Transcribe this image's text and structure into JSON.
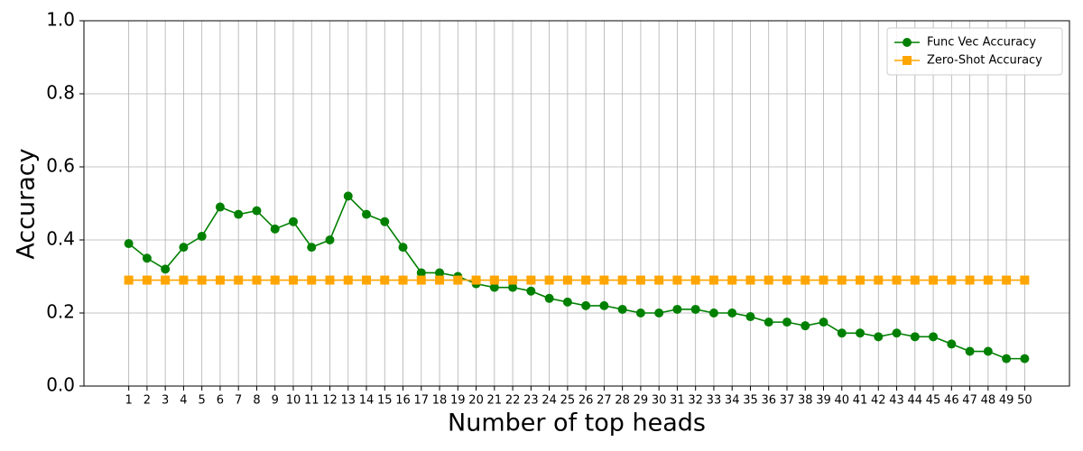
{
  "chart_data": {
    "type": "line",
    "x_label": "Number of top heads",
    "y_label": "Accuracy",
    "x": [
      1,
      2,
      3,
      4,
      5,
      6,
      7,
      8,
      9,
      10,
      11,
      12,
      13,
      14,
      15,
      16,
      17,
      18,
      19,
      20,
      21,
      22,
      23,
      24,
      25,
      26,
      27,
      28,
      29,
      30,
      31,
      32,
      33,
      34,
      35,
      36,
      37,
      38,
      39,
      40,
      41,
      42,
      43,
      44,
      45,
      46,
      47,
      48,
      49,
      50
    ],
    "series": [
      {
        "name": "Func Vec Accuracy",
        "color": "#008000",
        "marker": "circle",
        "values": [
          0.39,
          0.35,
          0.32,
          0.38,
          0.41,
          0.49,
          0.47,
          0.48,
          0.43,
          0.45,
          0.38,
          0.4,
          0.52,
          0.47,
          0.45,
          0.38,
          0.31,
          0.31,
          0.3,
          0.28,
          0.27,
          0.27,
          0.26,
          0.24,
          0.23,
          0.22,
          0.22,
          0.21,
          0.2,
          0.2,
          0.21,
          0.21,
          0.2,
          0.2,
          0.19,
          0.175,
          0.175,
          0.165,
          0.175,
          0.145,
          0.145,
          0.135,
          0.145,
          0.135,
          0.135,
          0.115,
          0.095,
          0.095,
          0.075,
          0.075
        ]
      },
      {
        "name": "Zero-Shot Accuracy",
        "color": "#ffa500",
        "marker": "square",
        "values": [
          0.29,
          0.29,
          0.29,
          0.29,
          0.29,
          0.29,
          0.29,
          0.29,
          0.29,
          0.29,
          0.29,
          0.29,
          0.29,
          0.29,
          0.29,
          0.29,
          0.29,
          0.29,
          0.29,
          0.29,
          0.29,
          0.29,
          0.29,
          0.29,
          0.29,
          0.29,
          0.29,
          0.29,
          0.29,
          0.29,
          0.29,
          0.29,
          0.29,
          0.29,
          0.29,
          0.29,
          0.29,
          0.29,
          0.29,
          0.29,
          0.29,
          0.29,
          0.29,
          0.29,
          0.29,
          0.29,
          0.29,
          0.29,
          0.29,
          0.29
        ]
      }
    ],
    "xlim": [
      -1.45,
      52.45
    ],
    "xticks": [
      1,
      2,
      3,
      4,
      5,
      6,
      7,
      8,
      9,
      10,
      11,
      12,
      13,
      14,
      15,
      16,
      17,
      18,
      19,
      20,
      21,
      22,
      23,
      24,
      25,
      26,
      27,
      28,
      29,
      30,
      31,
      32,
      33,
      34,
      35,
      36,
      37,
      38,
      39,
      40,
      41,
      42,
      43,
      44,
      45,
      46,
      47,
      48,
      49,
      50
    ],
    "ylim": [
      0,
      1
    ],
    "yticks": [
      {
        "value": 0,
        "label": "0.0"
      },
      {
        "value": 0.2,
        "label": "0.2"
      },
      {
        "value": 0.4,
        "label": "0.4"
      },
      {
        "value": 0.6,
        "label": "0.6"
      },
      {
        "value": 0.8,
        "label": "0.8"
      },
      {
        "value": 1,
        "label": "1.0"
      }
    ],
    "grid": true,
    "legend": "upper right"
  }
}
